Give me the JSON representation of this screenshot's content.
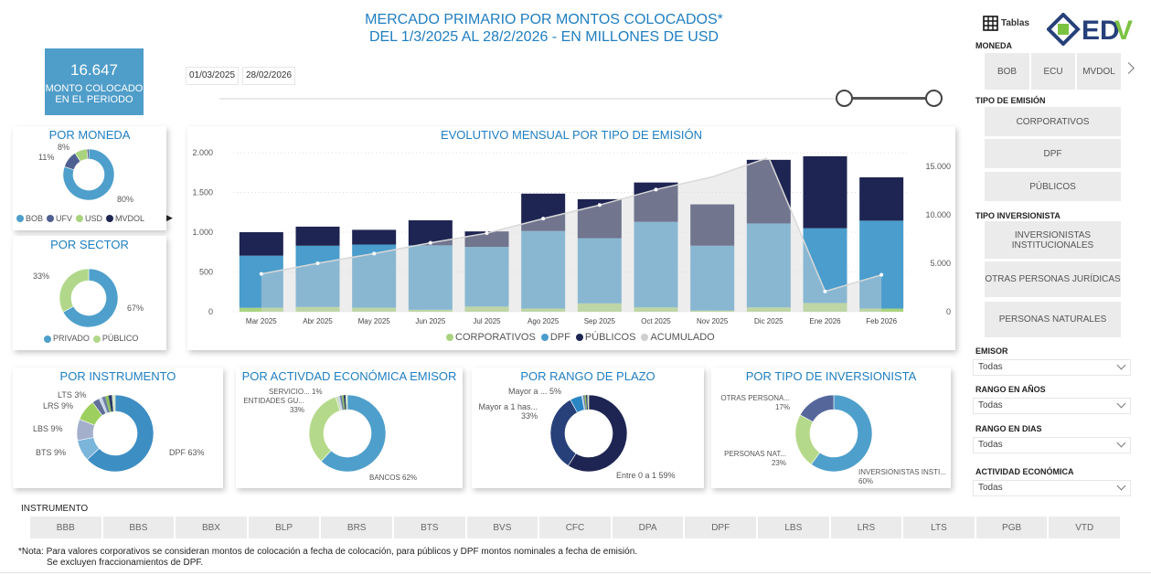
{
  "header": {
    "title_line1": "MERCADO PRIMARIO POR MONTOS COLOCADOS*",
    "title_line2": "DEL 1/3/2025 AL 28/2/2026 - EN MILLONES DE USD"
  },
  "kpi": {
    "value": "16.647",
    "label_line1": "MONTO COLOCADO",
    "label_line2": "EN EL PERIODO",
    "icon": "dollar-icon"
  },
  "date_range": {
    "start": "01/03/2025",
    "end": "28/02/2026"
  },
  "colors": {
    "accent": "#1f7ec1",
    "corporativos": "#a9d37e",
    "dpf": "#4a9dcc",
    "publicos": "#1e2552",
    "acumulado": "#cfcfcf"
  },
  "por_moneda": {
    "title": "POR MONEDA",
    "slices": [
      {
        "name": "BOB",
        "value": 80,
        "label": "80%",
        "color": "#4e9fcb"
      },
      {
        "name": "UFV",
        "value": 11,
        "label": "11%",
        "color": "#4f5f91"
      },
      {
        "name": "USD",
        "value": 8,
        "label": "8%",
        "color": "#a9d37e"
      },
      {
        "name": "MVDOL",
        "value": 1,
        "color": "#1e2550"
      }
    ]
  },
  "por_sector": {
    "title": "POR SECTOR",
    "slices": [
      {
        "name": "PRIVADO",
        "value": 67,
        "label": "67%",
        "color": "#4e9fcb"
      },
      {
        "name": "PÚBLICO",
        "value": 33,
        "label": "33%",
        "color": "#b1d88a"
      }
    ]
  },
  "por_instrumento": {
    "title": "POR INSTRUMENTO",
    "slices": [
      {
        "name": "DPF",
        "value": 63,
        "label": "DPF 63%",
        "color": "#3d8ec3"
      },
      {
        "name": "BTS",
        "value": 9,
        "label": "BTS 9%",
        "color": "#7cb5da"
      },
      {
        "name": "LBS",
        "value": 9,
        "label": "LBS 9%",
        "color": "#a4afcc"
      },
      {
        "name": "LRS",
        "value": 9,
        "label": "LRS 9%",
        "color": "#9ccf5e"
      },
      {
        "name": "LTS",
        "value": 3,
        "label": "LTS 3%",
        "color": "#5f6f9a"
      }
    ]
  },
  "por_actividad": {
    "title": "POR ACTIVDAD ECONÓMICA EMISOR",
    "slices": [
      {
        "name": "BANCOS",
        "value": 62,
        "label": "BANCOS 62%",
        "color": "#4e9fcb"
      },
      {
        "name": "ENTIDADES GU...",
        "value": 33,
        "label": "33%",
        "color": "#b5d98a"
      },
      {
        "name": "SERVICIO...",
        "value": 1,
        "label": "SERVICIO... 1%",
        "color": "#c3d8b0"
      }
    ]
  },
  "por_plazo": {
    "title": "POR RANGO DE PLAZO",
    "slices": [
      {
        "name": "Entre 0 a 1",
        "value": 59,
        "label": "Entre 0 a 1 59%",
        "color": "#1e2552"
      },
      {
        "name": "Mayor a 1 has...",
        "value": 33,
        "label": "33%",
        "color": "#27407a"
      },
      {
        "name": "Mayor a ...",
        "value": 5,
        "label": "Mayor a ... 5%",
        "color": "#2a85c4"
      }
    ]
  },
  "por_inversionista": {
    "title": "POR TIPO DE INVERSIONISTA",
    "slices": [
      {
        "name": "INVERSIONISTAS INSTI...",
        "value": 60,
        "label": "60%",
        "color": "#4e9fcb"
      },
      {
        "name": "PERSONAS NAT...",
        "value": 23,
        "label": "23%",
        "color": "#b5d98a"
      },
      {
        "name": "OTRAS PERSONA...",
        "value": 17,
        "label": "17%",
        "color": "#55679a"
      }
    ]
  },
  "chart_data": {
    "type": "bar",
    "title": "EVOLUTIVO MENSUAL POR TIPO DE EMISIÓN",
    "categories": [
      "Mar 2025",
      "Abr 2025",
      "May 2025",
      "Jun 2025",
      "Jul 2025",
      "Ago 2025",
      "Sep 2025",
      "Oct 2025",
      "Nov 2025",
      "Dic 2025",
      "Ene 2026",
      "Feb 2026"
    ],
    "stacked": true,
    "series": [
      {
        "name": "CORPORATIVOS",
        "color": "#a9d37e",
        "values": [
          50,
          60,
          50,
          25,
          65,
          40,
          105,
          55,
          15,
          55,
          110,
          40
        ]
      },
      {
        "name": "DPF",
        "color": "#4a9dcc",
        "values": [
          655,
          770,
          795,
          810,
          750,
          975,
          820,
          1075,
          815,
          1055,
          940,
          1105
        ]
      },
      {
        "name": "PÚBLICOS",
        "color": "#1e2552",
        "values": [
          295,
          240,
          185,
          315,
          195,
          470,
          490,
          495,
          520,
          800,
          905,
          545
        ]
      },
      {
        "name": "ACUMULADO",
        "type": "area",
        "axis": "right",
        "color": "#cfcfcf",
        "values": [
          3900,
          5000,
          6000,
          7100,
          8100,
          9600,
          11000,
          12600,
          13900,
          15900,
          2100,
          3800
        ]
      }
    ],
    "y_left": {
      "ticks": [
        "0",
        "500",
        "1.000",
        "1.500",
        "2.000"
      ],
      "tick_values": [
        0,
        500,
        1000,
        1500,
        2000
      ],
      "ylim": [
        0,
        2000
      ]
    },
    "y_right": {
      "ticks": [
        "0",
        "5.000",
        "10.000",
        "15.000"
      ],
      "tick_values": [
        0,
        5000,
        10000,
        15000
      ],
      "ylim": [
        0,
        16400
      ]
    },
    "grid": true,
    "legend": "bottom"
  },
  "right_panel": {
    "tables_label": "Tablas",
    "logo_text": "EDV",
    "moneda": {
      "label": "MONEDA",
      "options": [
        "BOB",
        "ECU",
        "MVDOL"
      ]
    },
    "tipo_emision": {
      "label": "TIPO DE EMISIÓN",
      "options": [
        "CORPORATIVOS",
        "DPF",
        "PÚBLICOS"
      ]
    },
    "tipo_inversionista": {
      "label": "TIPO INVERSIONISTA",
      "options": [
        "INVERSIONISTAS INSTITUCIONALES",
        "OTRAS PERSONAS JURÍDICAS",
        "PERSONAS NATURALES"
      ]
    },
    "filters": [
      {
        "label": "EMISOR",
        "value": "Todas"
      },
      {
        "label": "RANGO EN AÑOS",
        "value": "Todas"
      },
      {
        "label": "RANGO EN DIAS",
        "value": "Todas"
      },
      {
        "label": "ACTIVIDAD ECONÓMICA",
        "value": "Todas"
      }
    ]
  },
  "instrumento": {
    "label": "INSTRUMENTO",
    "options": [
      "BBB",
      "BBS",
      "BBX",
      "BLP",
      "BRS",
      "BTS",
      "BVS",
      "CFC",
      "DPA",
      "DPF",
      "LBS",
      "LRS",
      "LTS",
      "PGB",
      "VTD"
    ]
  },
  "note": {
    "line1": "*Nota: Para valores corporativos se consideran montos de colocación a fecha de colocación, para públicos y DPF montos nominales a fecha de emisión.",
    "line2": "Se excluyen fraccionamientos de DPF."
  }
}
